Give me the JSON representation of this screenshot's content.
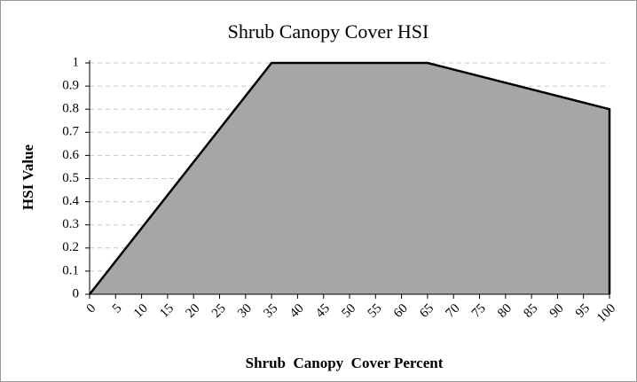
{
  "chart_data": {
    "type": "area",
    "title": "Shrub Canopy Cover HSI",
    "xlabel": "Shrub  Canopy  Cover Percent",
    "ylabel": "HSI Value",
    "x": [
      0,
      35,
      65,
      100
    ],
    "values": [
      0,
      1,
      1,
      0.8
    ],
    "color": "#a6a6a6",
    "line_color": "#000000",
    "xlim": [
      0,
      100
    ],
    "xticks": [
      0,
      5,
      10,
      15,
      20,
      25,
      30,
      35,
      40,
      45,
      50,
      55,
      60,
      65,
      70,
      75,
      80,
      85,
      90,
      95,
      100
    ],
    "ylim": [
      0,
      1
    ],
    "yticks": [
      0,
      0.1,
      0.2,
      0.3,
      0.4,
      0.5,
      0.6,
      0.7,
      0.8,
      0.9,
      1
    ],
    "grid": true
  }
}
